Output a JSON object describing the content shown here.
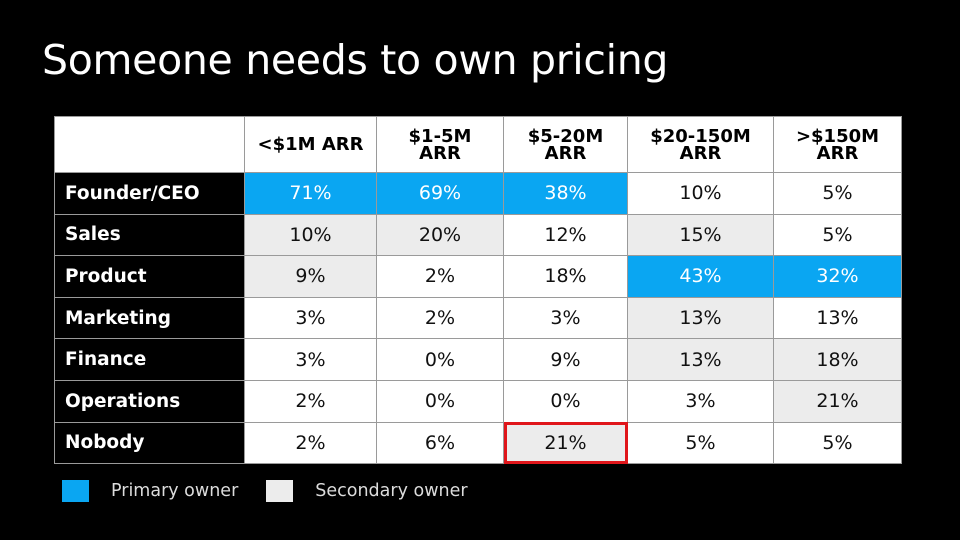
{
  "title": "Someone needs to own pricing",
  "colors": {
    "primary": "#0aa6f2",
    "secondary": "#ececec",
    "highlight": "#e0161b",
    "background": "#000000"
  },
  "table": {
    "columns": [
      "<$1M ARR",
      "$1-5M\nARR",
      "$5-20M\nARR",
      "$20-150M\nARR",
      ">$150M\nARR"
    ],
    "rows": [
      {
        "label": "Founder/CEO",
        "values": [
          "71%",
          "69%",
          "38%",
          "10%",
          "5%"
        ],
        "styles": [
          "primary",
          "primary",
          "primary",
          "",
          ""
        ]
      },
      {
        "label": "Sales",
        "values": [
          "10%",
          "20%",
          "12%",
          "15%",
          "5%"
        ],
        "styles": [
          "secondary",
          "secondary",
          "",
          "secondary",
          ""
        ]
      },
      {
        "label": "Product",
        "values": [
          "9%",
          "2%",
          "18%",
          "43%",
          "32%"
        ],
        "styles": [
          "secondary",
          "",
          "",
          "primary",
          "primary"
        ]
      },
      {
        "label": "Marketing",
        "values": [
          "3%",
          "2%",
          "3%",
          "13%",
          "13%"
        ],
        "styles": [
          "",
          "",
          "",
          "secondary",
          ""
        ]
      },
      {
        "label": "Finance",
        "values": [
          "3%",
          "0%",
          "9%",
          "13%",
          "18%"
        ],
        "styles": [
          "",
          "",
          "",
          "secondary",
          "secondary"
        ]
      },
      {
        "label": "Operations",
        "values": [
          "2%",
          "0%",
          "0%",
          "3%",
          "21%"
        ],
        "styles": [
          "",
          "",
          "",
          "",
          "secondary"
        ]
      },
      {
        "label": "Nobody",
        "values": [
          "2%",
          "6%",
          "21%",
          "5%",
          "5%"
        ],
        "styles": [
          "",
          "",
          "secondary highlight",
          "",
          ""
        ]
      }
    ]
  },
  "legend": {
    "primary_label": "Primary owner",
    "secondary_label": "Secondary owner"
  }
}
